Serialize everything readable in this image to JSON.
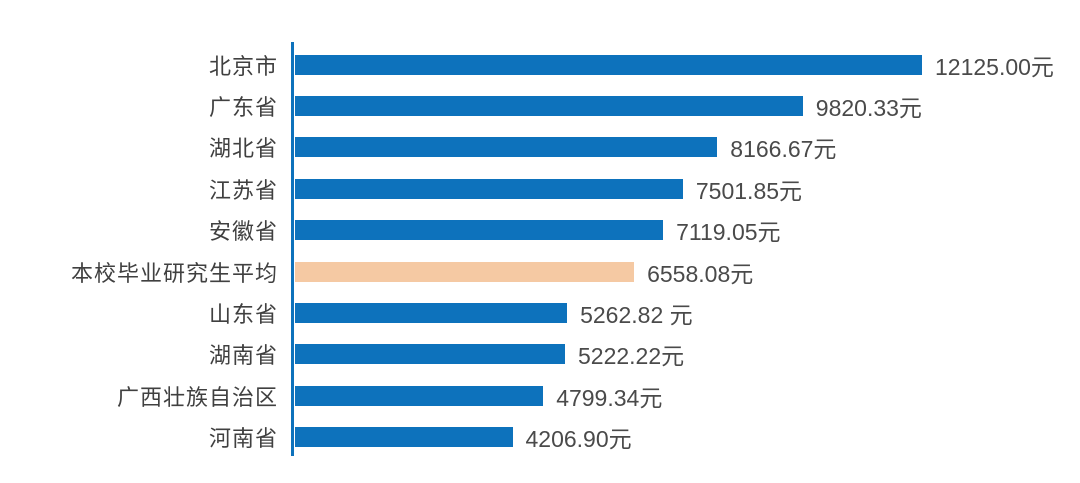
{
  "chart_data": {
    "type": "bar",
    "orientation": "horizontal",
    "title": "",
    "xlabel": "",
    "ylabel": "",
    "unit": "元",
    "grid": false,
    "legend": false,
    "xlim": [
      0,
      12125
    ],
    "categories": [
      "北京市",
      "广东省",
      "湖北省",
      "江苏省",
      "安徽省",
      "本校毕业研究生平均",
      "山东省",
      "湖南省",
      "广西壮族自治区",
      "河南省"
    ],
    "values": [
      12125.0,
      9820.33,
      8166.67,
      7501.85,
      7119.05,
      6558.08,
      5262.82,
      5222.22,
      4799.34,
      4206.9
    ],
    "value_labels": [
      "12125.00元",
      "9820.33元",
      "8166.67元",
      "7501.85元",
      "7119.05元",
      "6558.08元",
      "5262.82 元",
      "5222.22元",
      "4799.34元",
      "4206.90元"
    ],
    "highlight_index": 5,
    "colors": {
      "bar": "#0d72bc",
      "highlight_bar": "#f5c9a3",
      "axis": "#0d72bc",
      "category_text": "#404040",
      "value_text": "#4a4a4a",
      "background": "#ffffff"
    }
  }
}
